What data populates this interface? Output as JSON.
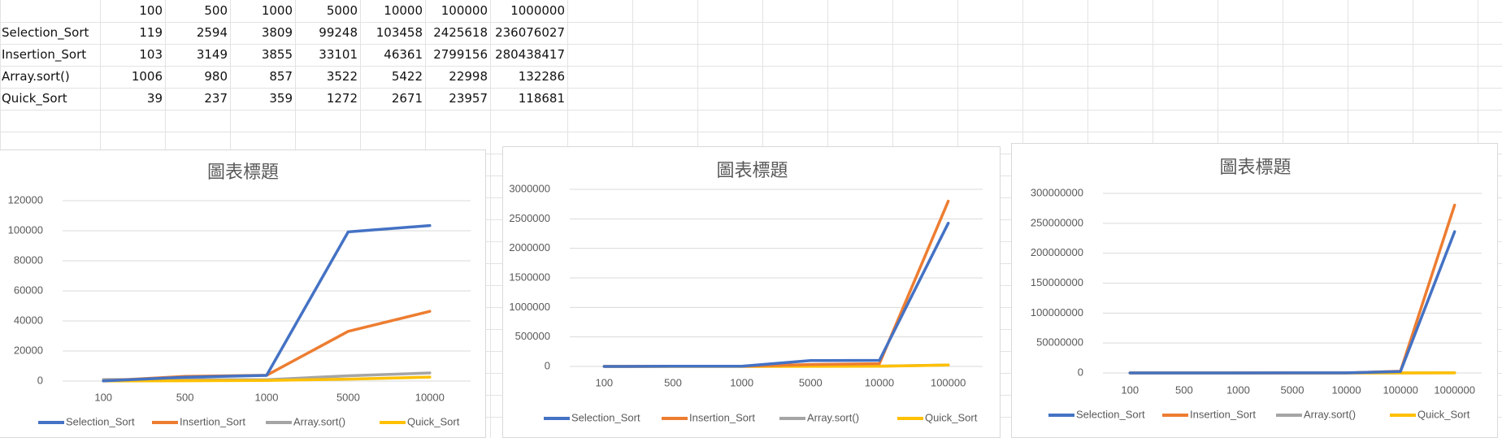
{
  "sheet": {
    "header_row": [
      "100",
      "500",
      "1000",
      "5000",
      "10000",
      "100000",
      "1000000"
    ],
    "rows": [
      {
        "name": "Selection_Sort",
        "values": [
          "119",
          "2594",
          "3809",
          "99248",
          "103458",
          "2425618",
          "236076027"
        ]
      },
      {
        "name": "Insertion_Sort",
        "values": [
          "103",
          "3149",
          "3855",
          "33101",
          "46361",
          "2799156",
          "280438417"
        ]
      },
      {
        "name": "Array.sort()",
        "values": [
          "1006",
          "980",
          "857",
          "3522",
          "5422",
          "22998",
          "132286"
        ]
      },
      {
        "name": "Quick_Sort",
        "values": [
          "39",
          "237",
          "359",
          "1272",
          "2671",
          "23957",
          "118681"
        ]
      }
    ]
  },
  "colors": {
    "Selection_Sort": "#4472c4",
    "Insertion_Sort": "#ed7d31",
    "Array.sort()": "#a5a5a5",
    "Quick_Sort": "#ffc000",
    "gridline": "#d9d9d9",
    "axis_text": "#595959"
  },
  "chart_data": [
    {
      "type": "line",
      "title": "圖表標題",
      "categories": [
        "100",
        "500",
        "1000",
        "5000",
        "10000"
      ],
      "ylim": [
        0,
        120000
      ],
      "yticks": [
        0,
        20000,
        40000,
        60000,
        80000,
        100000,
        120000
      ],
      "grid": true,
      "legend": "bottom",
      "series": [
        {
          "name": "Selection_Sort",
          "values": [
            119,
            2594,
            3809,
            99248,
            103458
          ]
        },
        {
          "name": "Insertion_Sort",
          "values": [
            103,
            3149,
            3855,
            33101,
            46361
          ]
        },
        {
          "name": "Array.sort()",
          "values": [
            1006,
            980,
            857,
            3522,
            5422
          ]
        },
        {
          "name": "Quick_Sort",
          "values": [
            39,
            237,
            359,
            1272,
            2671
          ]
        }
      ]
    },
    {
      "type": "line",
      "title": "圖表標題",
      "categories": [
        "100",
        "500",
        "1000",
        "5000",
        "10000",
        "100000"
      ],
      "ylim": [
        0,
        3000000
      ],
      "yticks": [
        0,
        500000,
        1000000,
        1500000,
        2000000,
        2500000,
        3000000
      ],
      "grid": true,
      "legend": "bottom",
      "series": [
        {
          "name": "Selection_Sort",
          "values": [
            119,
            2594,
            3809,
            99248,
            103458,
            2425618
          ]
        },
        {
          "name": "Insertion_Sort",
          "values": [
            103,
            3149,
            3855,
            33101,
            46361,
            2799156
          ]
        },
        {
          "name": "Array.sort()",
          "values": [
            1006,
            980,
            857,
            3522,
            5422,
            22998
          ]
        },
        {
          "name": "Quick_Sort",
          "values": [
            39,
            237,
            359,
            1272,
            2671,
            23957
          ]
        }
      ]
    },
    {
      "type": "line",
      "title": "圖表標題",
      "categories": [
        "100",
        "500",
        "1000",
        "5000",
        "10000",
        "100000",
        "1000000"
      ],
      "ylim": [
        0,
        300000000
      ],
      "yticks": [
        0,
        50000000,
        100000000,
        150000000,
        200000000,
        250000000,
        300000000
      ],
      "grid": true,
      "legend": "bottom",
      "series": [
        {
          "name": "Selection_Sort",
          "values": [
            119,
            2594,
            3809,
            99248,
            103458,
            2425618,
            236076027
          ]
        },
        {
          "name": "Insertion_Sort",
          "values": [
            103,
            3149,
            3855,
            33101,
            46361,
            2799156,
            280438417
          ]
        },
        {
          "name": "Array.sort()",
          "values": [
            1006,
            980,
            857,
            3522,
            5422,
            22998,
            132286
          ]
        },
        {
          "name": "Quick_Sort",
          "values": [
            39,
            237,
            359,
            1272,
            2671,
            23957,
            118681
          ]
        }
      ]
    }
  ]
}
